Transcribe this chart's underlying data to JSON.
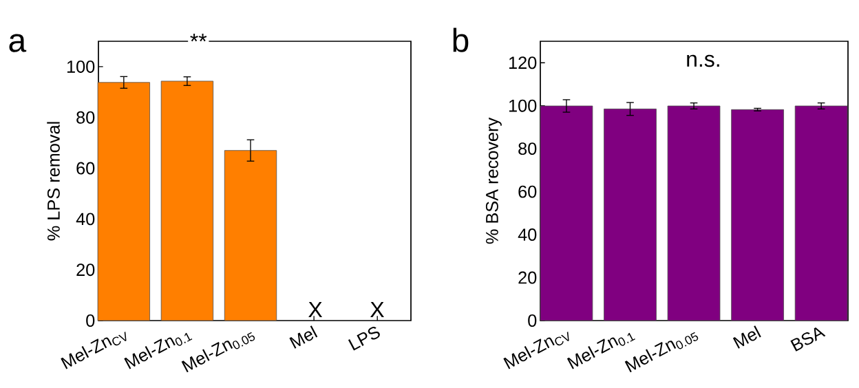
{
  "chart_data": [
    {
      "type": "bar",
      "title": "a",
      "ylabel": "% LPS removal",
      "categories": [
        "Mel-Zn$_{CV}$",
        "Mel-Zn$_{0.1}$",
        "Mel-Zn$_{0.05}$",
        "Mel",
        "LPS"
      ],
      "values": [
        93.8,
        94.3,
        67.0,
        null,
        null
      ],
      "errors": [
        2.3,
        1.7,
        4.2,
        null,
        null
      ],
      "color": "#ff7f00",
      "ylim": [
        0,
        110
      ],
      "yticks": [
        0,
        20,
        40,
        60,
        80,
        100
      ],
      "grid": false,
      "annotations": [
        "X",
        "X",
        "**"
      ]
    },
    {
      "type": "bar",
      "title": "b",
      "ylabel": "% BSA recovery",
      "categories": [
        "Mel-Zn$_{CV}$",
        "Mel-Zn$_{0.1}$",
        "Mel-Zn$_{0.05}$",
        "Mel",
        "BSA"
      ],
      "values": [
        99.9,
        98.5,
        99.9,
        98.2,
        99.9
      ],
      "errors": [
        2.9,
        3.0,
        1.4,
        0.6,
        1.4
      ],
      "color": "#800080",
      "ylim": [
        0,
        130
      ],
      "yticks": [
        0,
        20,
        40,
        60,
        80,
        100,
        120
      ],
      "grid": false,
      "annotations": [
        "n.s."
      ]
    }
  ]
}
